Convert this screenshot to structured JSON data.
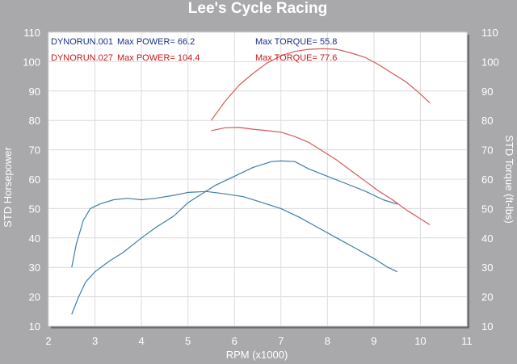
{
  "chart_data": {
    "type": "line",
    "title": "Lee's Cycle Racing",
    "xlabel": "RPM (x1000)",
    "ylabel_left": "STD Horsepower",
    "ylabel_right": "STD Torque (ft-lbs)",
    "xlim": [
      2,
      11
    ],
    "ylim": [
      10,
      110
    ],
    "x_ticks": [
      "2",
      "3",
      "4",
      "5",
      "6",
      "7",
      "8",
      "9",
      "10",
      "11"
    ],
    "y_ticks_left": [
      "10",
      "20",
      "30",
      "40",
      "50",
      "60",
      "70",
      "80",
      "90",
      "100",
      "110"
    ],
    "y_ticks_right": [
      "10",
      "20",
      "30",
      "40",
      "50",
      "60",
      "70",
      "80",
      "90",
      "100",
      "110"
    ],
    "legend": [
      {
        "run": "DYNORUN.001",
        "power": "Max POWER= 66.2",
        "torque": "Max TORQUE= 55.8",
        "color": "#1a2f86"
      },
      {
        "run": "DYNORUN.027",
        "power": "Max POWER= 104.4",
        "torque": "Max TORQUE= 77.6",
        "color": "#c21a1a"
      }
    ],
    "series": [
      {
        "color": "#3b7fa6",
        "x": [
          2.5,
          2.65,
          2.8,
          3.0,
          3.3,
          3.6,
          4.0,
          4.3,
          4.7,
          5.0,
          5.3,
          5.6,
          6.0,
          6.4,
          6.8,
          7.0,
          7.3,
          7.6,
          8.0,
          8.4,
          8.8,
          9.2,
          9.5
        ],
        "y": [
          14,
          20,
          25,
          28.5,
          32,
          35,
          40,
          43.5,
          47.5,
          52,
          55,
          58,
          61,
          64,
          66,
          66.2,
          66,
          63.5,
          61,
          58.5,
          56,
          53,
          51.5
        ]
      },
      {
        "color": "#3b7fa6",
        "x": [
          2.5,
          2.6,
          2.75,
          2.9,
          3.1,
          3.4,
          3.7,
          4.0,
          4.3,
          4.7,
          5.0,
          5.4,
          5.8,
          6.2,
          6.6,
          7.0,
          7.4,
          7.8,
          8.2,
          8.6,
          9.0,
          9.3,
          9.5
        ],
        "y": [
          30,
          38,
          46,
          50,
          51.5,
          53,
          53.5,
          53,
          53.5,
          54.5,
          55.5,
          55.8,
          55,
          54,
          52,
          50,
          47,
          43.5,
          40,
          36.5,
          33,
          30,
          28.5
        ]
      },
      {
        "color": "#d8565a",
        "x": [
          5.5,
          5.8,
          6.1,
          6.4,
          6.7,
          7.0,
          7.3,
          7.6,
          7.9,
          8.2,
          8.5,
          8.8,
          9.1,
          9.4,
          9.7,
          10.0,
          10.2
        ],
        "y": [
          80,
          86.5,
          92,
          96,
          99.5,
          102,
          103.5,
          104.2,
          104.4,
          104.2,
          103,
          101.5,
          99,
          96,
          93,
          89,
          86
        ]
      },
      {
        "color": "#d8565a",
        "x": [
          5.5,
          5.8,
          6.1,
          6.4,
          6.7,
          7.0,
          7.3,
          7.6,
          7.9,
          8.2,
          8.5,
          8.8,
          9.1,
          9.4,
          9.7,
          10.0,
          10.2
        ],
        "y": [
          76.5,
          77.5,
          77.6,
          77,
          76.5,
          76,
          74.5,
          72.5,
          69.5,
          66.5,
          63,
          59.5,
          56,
          53,
          49.5,
          46.5,
          44.5
        ]
      }
    ]
  }
}
